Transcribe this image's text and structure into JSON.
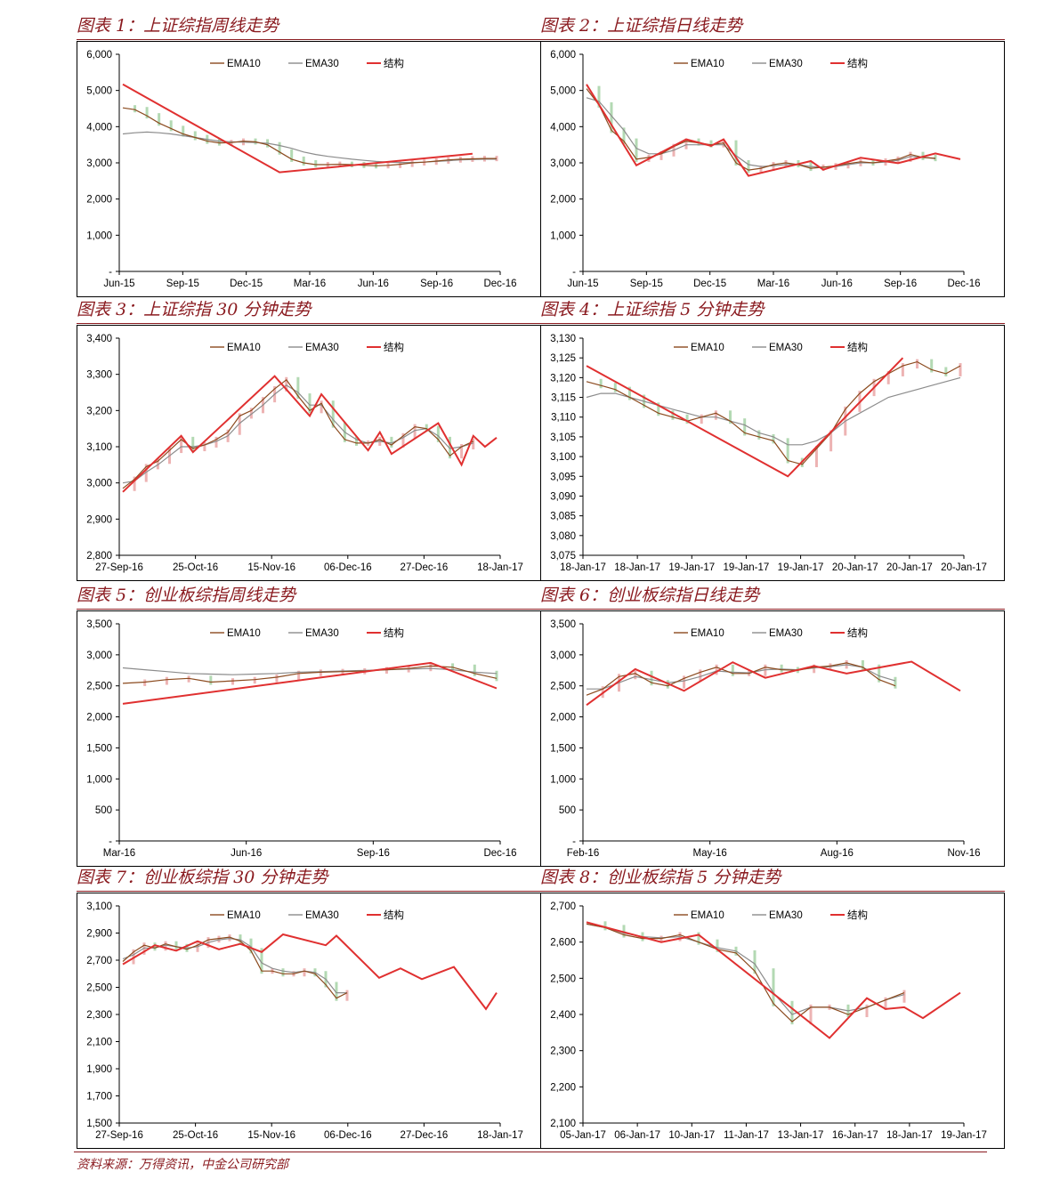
{
  "colors": {
    "accent": "#8a1a1f",
    "ema10": "#8b4a1e",
    "ema30": "#8c8c8c",
    "structure": "#e03030",
    "candle_up": "#e8a0a0",
    "candle_down": "#a0d0a0",
    "axis": "#000000"
  },
  "legend": {
    "ema10": "EMA10",
    "ema30": "EMA30",
    "structure": "结构"
  },
  "source": "资料来源：万得资讯，中金公司研究部",
  "chart_data": [
    {
      "title": "图表 1：上证综指周线走势",
      "type": "line",
      "x_labels": [
        "Jun-15",
        "Sep-15",
        "Dec-15",
        "Mar-16",
        "Jun-16",
        "Sep-16",
        "Dec-16"
      ],
      "y_ticks": [
        "6,000",
        "5,000",
        "4,000",
        "3,000",
        "2,000",
        "1,000",
        "-"
      ],
      "ylim": [
        0,
        6000
      ],
      "series": [
        {
          "name": "EMA10",
          "values": [
            4520,
            4470,
            4300,
            4100,
            3950,
            3800,
            3700,
            3600,
            3550,
            3560,
            3600,
            3580,
            3500,
            3300,
            3100,
            3000,
            2950,
            2950,
            2960,
            2950,
            2930,
            2920,
            2930,
            2960,
            3000,
            3020,
            3050,
            3080,
            3100,
            3110,
            3120,
            3120
          ]
        },
        {
          "name": "EMA30",
          "values": [
            3800,
            3830,
            3850,
            3830,
            3800,
            3750,
            3700,
            3650,
            3600,
            3580,
            3570,
            3560,
            3540,
            3480,
            3400,
            3300,
            3230,
            3180,
            3140,
            3100,
            3070,
            3040,
            3020,
            3010,
            3010,
            3020,
            3040,
            3060,
            3080,
            3090,
            3100,
            3100
          ]
        },
        {
          "name": "结构",
          "points": [
            [
              0,
              5170
            ],
            [
              13,
              2740
            ],
            [
              29,
              3250
            ]
          ]
        }
      ]
    },
    {
      "title": "图表 2：上证综指日线走势",
      "type": "line",
      "x_labels": [
        "Jun-15",
        "Sep-15",
        "Dec-15",
        "Mar-16",
        "Jun-16",
        "Sep-16",
        "Dec-16"
      ],
      "y_ticks": [
        "6,000",
        "5,000",
        "4,000",
        "3,000",
        "2,000",
        "1,000",
        "-"
      ],
      "ylim": [
        0,
        6000
      ],
      "series": [
        {
          "name": "EMA10",
          "values": [
            5050,
            4600,
            3900,
            3600,
            3100,
            3150,
            3250,
            3450,
            3600,
            3550,
            3500,
            3550,
            3000,
            2800,
            2850,
            2950,
            3000,
            2950,
            2850,
            2880,
            2920,
            2980,
            3030,
            3000,
            3050,
            3100,
            3230,
            3150,
            3120
          ]
        },
        {
          "name": "EMA30",
          "values": [
            4800,
            4700,
            4300,
            3900,
            3400,
            3250,
            3250,
            3350,
            3500,
            3500,
            3500,
            3500,
            3200,
            2950,
            2900,
            2920,
            2950,
            2950,
            2900,
            2880,
            2900,
            2950,
            3000,
            3000,
            3020,
            3070,
            3180,
            3150,
            3130
          ]
        },
        {
          "name": "结构",
          "points": [
            [
              0,
              5170
            ],
            [
              4,
              2930
            ],
            [
              8,
              3650
            ],
            [
              10,
              3470
            ],
            [
              11,
              3650
            ],
            [
              13,
              2640
            ],
            [
              18,
              3050
            ],
            [
              19,
              2810
            ],
            [
              22,
              3140
            ],
            [
              25,
              2990
            ],
            [
              28,
              3260
            ],
            [
              30,
              3100
            ]
          ]
        }
      ]
    },
    {
      "title": "图表 3：上证综指 30 分钟走势",
      "type": "line",
      "x_labels": [
        "27-Sep-16",
        "25-Oct-16",
        "15-Nov-16",
        "06-Dec-16",
        "27-Dec-16",
        "18-Jan-17"
      ],
      "y_ticks": [
        "3,400",
        "3,300",
        "3,200",
        "3,100",
        "3,000",
        "2,900",
        "2,800"
      ],
      "ylim": [
        2800,
        3400
      ],
      "series": [
        {
          "name": "EMA10",
          "values": [
            2985,
            3010,
            3045,
            3060,
            3090,
            3120,
            3095,
            3105,
            3120,
            3140,
            3185,
            3200,
            3230,
            3260,
            3285,
            3240,
            3200,
            3220,
            3160,
            3120,
            3110,
            3110,
            3120,
            3105,
            3130,
            3155,
            3150,
            3120,
            3075,
            3100,
            3115
          ]
        },
        {
          "name": "EMA30",
          "values": [
            3000,
            3005,
            3030,
            3050,
            3075,
            3100,
            3100,
            3105,
            3115,
            3130,
            3165,
            3190,
            3215,
            3245,
            3270,
            3250,
            3215,
            3215,
            3175,
            3140,
            3120,
            3110,
            3115,
            3110,
            3125,
            3145,
            3150,
            3130,
            3095,
            3100,
            3110
          ]
        },
        {
          "name": "结构",
          "points": [
            [
              0,
              2975
            ],
            [
              5,
              3130
            ],
            [
              6,
              3085
            ],
            [
              13,
              3295
            ],
            [
              16,
              3185
            ],
            [
              17,
              3245
            ],
            [
              21,
              3090
            ],
            [
              22,
              3140
            ],
            [
              23,
              3080
            ],
            [
              27,
              3165
            ],
            [
              29,
              3050
            ],
            [
              30,
              3130
            ],
            [
              31,
              3100
            ],
            [
              32,
              3125
            ]
          ]
        }
      ]
    },
    {
      "title": "图表 4：上证综指 5 分钟走势",
      "type": "line",
      "x_labels": [
        "18-Jan-17",
        "18-Jan-17",
        "19-Jan-17",
        "19-Jan-17",
        "19-Jan-17",
        "20-Jan-17",
        "20-Jan-17",
        "20-Jan-17"
      ],
      "y_ticks": [
        "3,130",
        "3,125",
        "3,120",
        "3,115",
        "3,110",
        "3,105",
        "3,100",
        "3,095",
        "3,090",
        "3,085",
        "3,080",
        "3,075"
      ],
      "ylim": [
        3075,
        3130
      ],
      "series": [
        {
          "name": "EMA10",
          "values": [
            3119,
            3118,
            3117,
            3115,
            3113,
            3111,
            3110,
            3109,
            3110,
            3111,
            3109,
            3106,
            3105,
            3104,
            3099,
            3098,
            3102,
            3106,
            3112,
            3116,
            3119,
            3121,
            3123,
            3124,
            3122,
            3121,
            3123
          ]
        },
        {
          "name": "EMA30",
          "values": [
            3115,
            3116,
            3116,
            3115,
            3114,
            3113,
            3112,
            3111,
            3110,
            3110,
            3109,
            3108,
            3106,
            3105,
            3103,
            3103,
            3104,
            3106,
            3109,
            3111,
            3113,
            3115,
            3116,
            3117,
            3118,
            3119,
            3120
          ]
        },
        {
          "name": "结构",
          "points": [
            [
              0,
              3123
            ],
            [
              14,
              3095
            ],
            [
              22,
              3125
            ]
          ]
        }
      ]
    },
    {
      "title": "图表 5：创业板综指周线走势",
      "type": "line",
      "x_labels": [
        "Mar-16",
        "Jun-16",
        "Sep-16",
        "Dec-16"
      ],
      "y_ticks": [
        "3,500",
        "3,000",
        "2,500",
        "2,000",
        "1,500",
        "1,000",
        "500",
        "-"
      ],
      "ylim": [
        0,
        3500
      ],
      "series": [
        {
          "name": "EMA10",
          "values": [
            2540,
            2560,
            2600,
            2620,
            2560,
            2580,
            2600,
            2640,
            2700,
            2720,
            2730,
            2740,
            2760,
            2780,
            2820,
            2800,
            2700,
            2620
          ]
        },
        {
          "name": "EMA30",
          "values": [
            2790,
            2760,
            2730,
            2700,
            2690,
            2680,
            2690,
            2700,
            2720,
            2730,
            2740,
            2750,
            2760,
            2770,
            2780,
            2760,
            2720,
            2700
          ]
        },
        {
          "name": "结构",
          "points": [
            [
              0,
              2210
            ],
            [
              14,
              2870
            ],
            [
              17,
              2460
            ]
          ]
        }
      ]
    },
    {
      "title": "图表 6：创业板综指日线走势",
      "type": "line",
      "x_labels": [
        "Feb-16",
        "May-16",
        "Aug-16",
        "Nov-16"
      ],
      "y_ticks": [
        "3,500",
        "3,000",
        "2,500",
        "2,000",
        "1,500",
        "1,000",
        "500",
        "-"
      ],
      "ylim": [
        0,
        3500
      ],
      "series": [
        {
          "name": "EMA10",
          "values": [
            2350,
            2450,
            2650,
            2700,
            2550,
            2500,
            2620,
            2720,
            2800,
            2700,
            2700,
            2800,
            2760,
            2750,
            2800,
            2820,
            2870,
            2800,
            2600,
            2500
          ]
        },
        {
          "name": "EMA30",
          "values": [
            2450,
            2450,
            2550,
            2650,
            2600,
            2550,
            2580,
            2650,
            2740,
            2720,
            2710,
            2760,
            2770,
            2760,
            2790,
            2810,
            2840,
            2800,
            2660,
            2580
          ]
        },
        {
          "name": "结构",
          "points": [
            [
              0,
              2190
            ],
            [
              3,
              2770
            ],
            [
              6,
              2420
            ],
            [
              9,
              2880
            ],
            [
              11,
              2630
            ],
            [
              14,
              2820
            ],
            [
              16,
              2700
            ],
            [
              20,
              2890
            ],
            [
              23,
              2420
            ]
          ]
        }
      ]
    },
    {
      "title": "图表 7：创业板综指 30 分钟走势",
      "type": "line",
      "x_labels": [
        "27-Sep-16",
        "25-Oct-16",
        "15-Nov-16",
        "06-Dec-16",
        "27-Dec-16",
        "18-Jan-17"
      ],
      "y_ticks": [
        "3,100",
        "2,900",
        "2,700",
        "2,500",
        "2,300",
        "2,100",
        "1,900",
        "1,700",
        "1,500"
      ],
      "ylim": [
        1500,
        3100
      ],
      "series": [
        {
          "name": "EMA10",
          "values": [
            2690,
            2760,
            2810,
            2790,
            2820,
            2800,
            2780,
            2810,
            2850,
            2860,
            2870,
            2840,
            2770,
            2620,
            2620,
            2600,
            2600,
            2620,
            2600,
            2520,
            2420,
            2460
          ]
        },
        {
          "name": "EMA30",
          "values": [
            2710,
            2740,
            2790,
            2790,
            2810,
            2800,
            2790,
            2800,
            2830,
            2850,
            2860,
            2850,
            2800,
            2680,
            2640,
            2620,
            2610,
            2620,
            2610,
            2560,
            2460,
            2460
          ]
        },
        {
          "name": "结构",
          "points": [
            [
              0,
              2670
            ],
            [
              3,
              2810
            ],
            [
              5,
              2770
            ],
            [
              7,
              2840
            ],
            [
              9,
              2780
            ],
            [
              11,
              2820
            ],
            [
              13,
              2760
            ],
            [
              15,
              2890
            ],
            [
              19,
              2810
            ],
            [
              20,
              2880
            ],
            [
              24,
              2570
            ],
            [
              26,
              2640
            ],
            [
              28,
              2560
            ],
            [
              31,
              2650
            ],
            [
              34,
              2340
            ],
            [
              35,
              2460
            ]
          ]
        }
      ]
    },
    {
      "title": "图表 8：创业板综指 5 分钟走势",
      "type": "line",
      "x_labels": [
        "05-Jan-17",
        "06-Jan-17",
        "10-Jan-17",
        "11-Jan-17",
        "13-Jan-17",
        "16-Jan-17",
        "18-Jan-17",
        "19-Jan-17"
      ],
      "y_ticks": [
        "2,700",
        "2,600",
        "2,500",
        "2,400",
        "2,300",
        "2,200",
        "2,100"
      ],
      "ylim": [
        2100,
        2700
      ],
      "series": [
        {
          "name": "EMA10",
          "values": [
            2650,
            2640,
            2620,
            2610,
            2610,
            2620,
            2600,
            2580,
            2570,
            2520,
            2430,
            2380,
            2420,
            2420,
            2400,
            2420,
            2440,
            2460
          ]
        },
        {
          "name": "EMA30",
          "values": [
            2650,
            2640,
            2625,
            2615,
            2612,
            2615,
            2600,
            2585,
            2575,
            2540,
            2460,
            2400,
            2420,
            2420,
            2410,
            2420,
            2440,
            2455
          ]
        },
        {
          "name": "结构",
          "points": [
            [
              0,
              2655
            ],
            [
              4,
              2600
            ],
            [
              6,
              2620
            ],
            [
              13,
              2335
            ],
            [
              15,
              2445
            ],
            [
              16,
              2415
            ],
            [
              17,
              2420
            ],
            [
              18,
              2390
            ],
            [
              20,
              2460
            ]
          ]
        }
      ]
    }
  ]
}
